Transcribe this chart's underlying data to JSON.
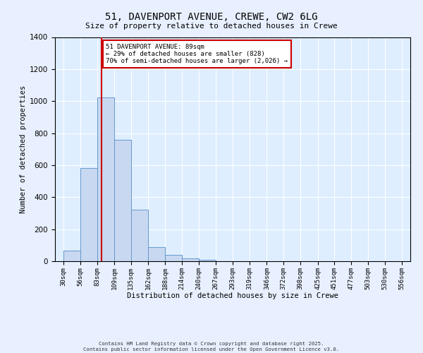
{
  "title": "51, DAVENPORT AVENUE, CREWE, CW2 6LG",
  "subtitle": "Size of property relative to detached houses in Crewe",
  "xlabel": "Distribution of detached houses by size in Crewe",
  "ylabel": "Number of detached properties",
  "bar_values": [
    68,
    580,
    1025,
    760,
    320,
    88,
    40,
    18,
    8,
    0,
    0,
    0,
    0,
    0,
    0,
    0,
    0,
    0,
    0,
    0
  ],
  "bin_labels": [
    "30sqm",
    "56sqm",
    "83sqm",
    "109sqm",
    "135sqm",
    "162sqm",
    "188sqm",
    "214sqm",
    "240sqm",
    "267sqm",
    "293sqm",
    "319sqm",
    "346sqm",
    "372sqm",
    "398sqm",
    "425sqm",
    "451sqm",
    "477sqm",
    "503sqm",
    "530sqm",
    "556sqm"
  ],
  "bin_edges": [
    30,
    56,
    83,
    109,
    135,
    162,
    188,
    214,
    240,
    267,
    293,
    319,
    346,
    372,
    398,
    425,
    451,
    477,
    503,
    530,
    556
  ],
  "bar_color": "#c8d8f0",
  "bar_edge_color": "#6699cc",
  "property_line_x": 89,
  "vline_color": "#cc0000",
  "annotation_title": "51 DAVENPORT AVENUE: 89sqm",
  "annotation_line1": "← 29% of detached houses are smaller (828)",
  "annotation_line2": "70% of semi-detached houses are larger (2,026) →",
  "annotation_box_color": "#ffffff",
  "annotation_box_edge": "#cc0000",
  "ylim": [
    0,
    1400
  ],
  "yticks": [
    0,
    200,
    400,
    600,
    800,
    1000,
    1200,
    1400
  ],
  "background_color": "#e8f0ff",
  "plot_bg_color": "#deeeff",
  "grid_color": "#ffffff",
  "footer_line1": "Contains HM Land Registry data © Crown copyright and database right 2025.",
  "footer_line2": "Contains public sector information licensed under the Open Government Licence v3.0."
}
